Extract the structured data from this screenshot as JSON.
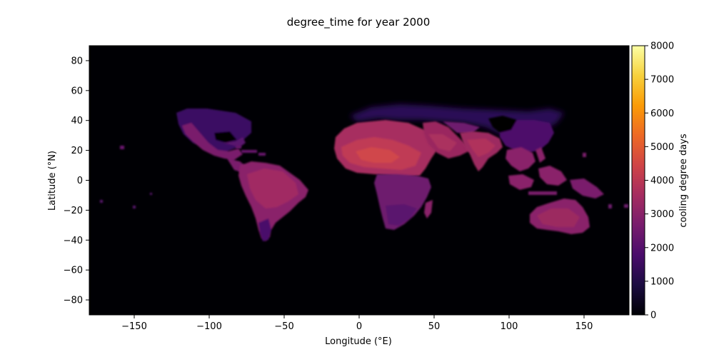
{
  "chart_data": {
    "type": "heatmap",
    "title": "degree_time for year 2000",
    "xlabel": "Longitude (°E)",
    "ylabel": "Latitude (°N)",
    "xlim": [
      -180,
      180
    ],
    "ylim": [
      -90,
      90
    ],
    "x_ticks": [
      -150,
      -100,
      -50,
      0,
      50,
      100,
      150
    ],
    "x_tick_labels": [
      "−150",
      "−100",
      "−50",
      "0",
      "50",
      "100",
      "150"
    ],
    "y_ticks": [
      80,
      60,
      40,
      20,
      0,
      -20,
      -40,
      -60,
      -80
    ],
    "y_tick_labels": [
      "80",
      "60",
      "40",
      "20",
      "0",
      "−20",
      "−40",
      "−60",
      "−80"
    ],
    "colorbar": {
      "label": "cooling degree days",
      "min": 0,
      "max": 8000,
      "ticks": [
        0,
        1000,
        2000,
        3000,
        4000,
        5000,
        6000,
        7000,
        8000
      ],
      "tick_labels": [
        "0",
        "1000",
        "2000",
        "3000",
        "4000",
        "5000",
        "6000",
        "7000",
        "8000"
      ],
      "colormap": "inferno",
      "colors": [
        "#000004",
        "#1b0c41",
        "#4a0c6b",
        "#781c6d",
        "#a52c60",
        "#cf4446",
        "#ed6925",
        "#fb9b06",
        "#f7d13d",
        "#fcffa4"
      ]
    },
    "background_value": 0,
    "regions": [
      {
        "name": "North America",
        "lon_range": [
          -125,
          -65
        ],
        "lat_range": [
          15,
          50
        ],
        "approx_value": 1800
      },
      {
        "name": "South America",
        "lon_range": [
          -80,
          -35
        ],
        "lat_range": [
          -40,
          10
        ],
        "approx_value": 2800
      },
      {
        "name": "Sahara / North Africa",
        "lon_range": [
          -15,
          35
        ],
        "lat_range": [
          10,
          30
        ],
        "approx_value": 3800
      },
      {
        "name": "Central / Southern Africa",
        "lon_range": [
          10,
          40
        ],
        "lat_range": [
          -35,
          10
        ],
        "approx_value": 2500
      },
      {
        "name": "Arabian Peninsula",
        "lon_range": [
          35,
          55
        ],
        "lat_range": [
          12,
          30
        ],
        "approx_value": 3300
      },
      {
        "name": "India",
        "lon_range": [
          68,
          90
        ],
        "lat_range": [
          8,
          28
        ],
        "approx_value": 3000
      },
      {
        "name": "Southeast Asia",
        "lon_range": [
          95,
          150
        ],
        "lat_range": [
          -10,
          20
        ],
        "approx_value": 2800
      },
      {
        "name": "Australia",
        "lon_range": [
          115,
          153
        ],
        "lat_range": [
          -35,
          -12
        ],
        "approx_value": 2600
      },
      {
        "name": "Europe / Central Asia",
        "lon_range": [
          -10,
          140
        ],
        "lat_range": [
          30,
          55
        ],
        "approx_value": 900
      }
    ]
  }
}
